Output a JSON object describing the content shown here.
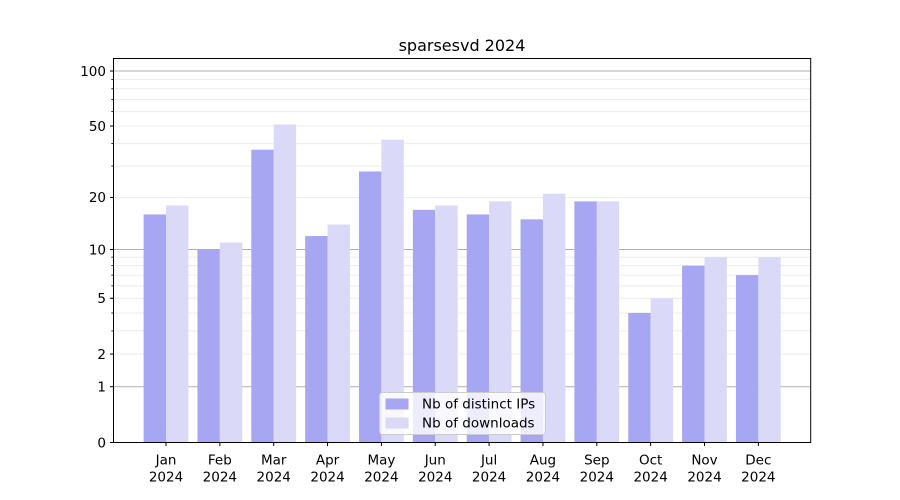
{
  "chart_data": {
    "type": "bar",
    "title": "sparsesvd 2024",
    "categories": [
      "Jan",
      "Feb",
      "Mar",
      "Apr",
      "May",
      "Jun",
      "Jul",
      "Aug",
      "Sep",
      "Oct",
      "Nov",
      "Dec"
    ],
    "x_tick_second_line": "2024",
    "series": [
      {
        "name": "Nb of distinct IPs",
        "color": "#a7a6f2",
        "values": [
          16,
          10,
          37,
          12,
          28,
          17,
          16,
          15,
          19,
          4,
          8,
          7
        ]
      },
      {
        "name": "Nb of downloads",
        "color": "#dadaf8",
        "values": [
          18,
          11,
          51,
          14,
          42,
          18,
          19,
          21,
          19,
          5,
          9,
          9
        ]
      }
    ],
    "yscale": "log1p",
    "ylim": [
      0,
      117
    ],
    "yticks": [
      0,
      1,
      2,
      5,
      10,
      20,
      50,
      100
    ],
    "ytick_labels": [
      "0",
      "1",
      "2",
      "5",
      "10",
      "20",
      "50",
      "100"
    ],
    "grid": {
      "on": true,
      "major": [
        1,
        10,
        100
      ],
      "minor": [
        2,
        3,
        4,
        5,
        6,
        7,
        8,
        9,
        20,
        30,
        40,
        50,
        60,
        70,
        80,
        90
      ]
    },
    "legend": {
      "position": "lower-center",
      "entries": [
        "Nb of distinct IPs",
        "Nb of downloads"
      ]
    }
  },
  "colors": {
    "background": "#ffffff",
    "bar_distinct_ips": "#a7a6f2",
    "bar_downloads": "#dadaf8",
    "major_grid": "#b0b0b0",
    "minor_grid": "#ececec",
    "axis": "#000000",
    "tick_text": "#000000",
    "legend_border": "#cccccc",
    "legend_background": "rgba(255,255,255,0.8)"
  }
}
